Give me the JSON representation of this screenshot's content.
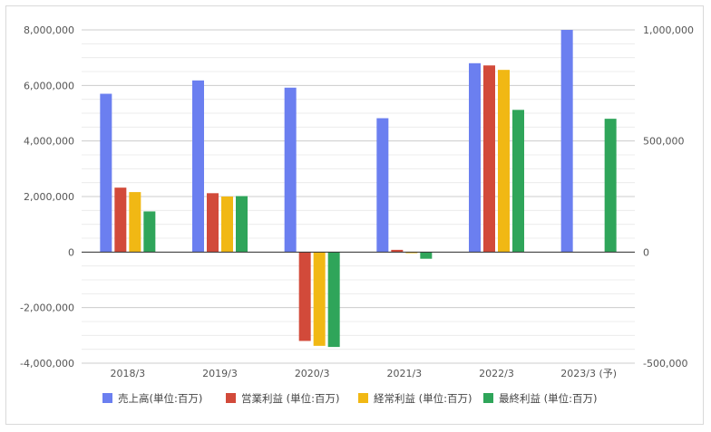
{
  "chart_data": {
    "type": "bar",
    "categories": [
      "2018/3",
      "2019/3",
      "2020/3",
      "2021/3",
      "2022/3",
      "2023/3 (予)"
    ],
    "left_axis": {
      "min": -4000000,
      "max": 8000000,
      "ticks": [
        -4000000,
        -2000000,
        0,
        2000000,
        4000000,
        6000000,
        8000000
      ],
      "tick_labels": [
        "-4,000,000",
        "-2,000,000",
        "0",
        "2,000,000",
        "4,000,000",
        "6,000,000",
        "8,000,000"
      ]
    },
    "right_axis": {
      "min": -500000,
      "max": 1000000,
      "ticks": [
        -500000,
        0,
        500000,
        1000000
      ],
      "tick_labels": [
        "-500,000",
        "0",
        "500,000",
        "1,000,000"
      ]
    },
    "series": [
      {
        "name": "売上高(単位:百万)",
        "axis": "left",
        "color": "#6b7ff0",
        "values": [
          5700000,
          6180000,
          5920000,
          4820000,
          6800000,
          8000000
        ]
      },
      {
        "name": "営業利益 (単位:百万)",
        "axis": "right",
        "color": "#d24a3a",
        "values": [
          290000,
          265000,
          -400000,
          10000,
          840000,
          null
        ]
      },
      {
        "name": "経常利益 (単位:百万)",
        "axis": "right",
        "color": "#f1b814",
        "values": [
          270000,
          250000,
          -422000,
          -5000,
          820000,
          null
        ]
      },
      {
        "name": "最終利益 (単位:百万)",
        "axis": "right",
        "color": "#2fa55a",
        "values": [
          183000,
          252000,
          -427000,
          -30000,
          640000,
          600000
        ]
      }
    ],
    "grid": true,
    "legend_position": "bottom"
  }
}
